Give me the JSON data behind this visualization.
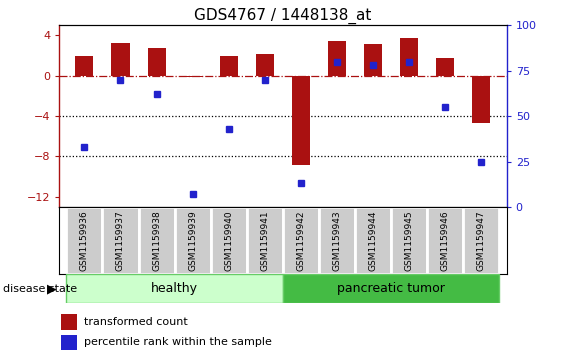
{
  "title": "GDS4767 / 1448138_at",
  "samples": [
    "GSM1159936",
    "GSM1159937",
    "GSM1159938",
    "GSM1159939",
    "GSM1159940",
    "GSM1159941",
    "GSM1159942",
    "GSM1159943",
    "GSM1159944",
    "GSM1159945",
    "GSM1159946",
    "GSM1159947"
  ],
  "transformed_count": [
    2.0,
    3.3,
    2.8,
    -0.1,
    2.0,
    2.2,
    -8.8,
    3.5,
    3.2,
    3.8,
    1.8,
    -4.7
  ],
  "percentile_rank": [
    33,
    70,
    62,
    7,
    43,
    70,
    13,
    80,
    78,
    80,
    55,
    25
  ],
  "bar_color": "#aa1111",
  "dot_color": "#2222cc",
  "healthy_color_light": "#ccffcc",
  "healthy_color": "#66cc66",
  "tumor_color": "#44bb44",
  "ylim_left": [
    -13,
    5
  ],
  "ylim_right": [
    0,
    100
  ],
  "yticks_left": [
    4,
    0,
    -4,
    -8,
    -12
  ],
  "yticks_right": [
    100,
    75,
    50,
    25,
    0
  ],
  "dotted_lines": [
    -4,
    -8
  ],
  "bar_width": 0.5,
  "figsize": [
    5.63,
    3.63
  ],
  "dpi": 100,
  "n_healthy": 6,
  "n_tumor": 6
}
